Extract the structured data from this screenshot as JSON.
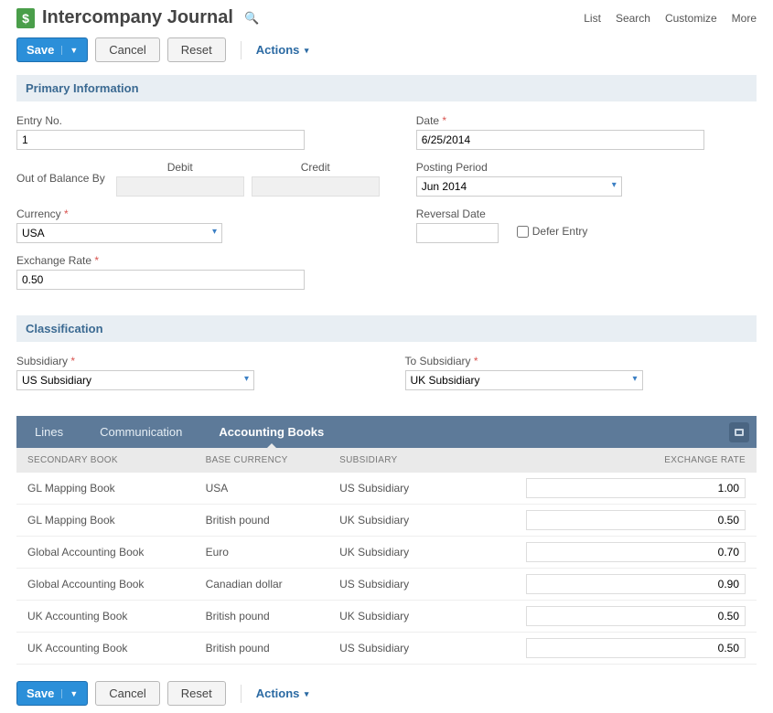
{
  "header": {
    "title": "Intercompany Journal",
    "doc_icon_glyph": "$",
    "links": [
      "List",
      "Search",
      "Customize",
      "More"
    ]
  },
  "toolbar": {
    "save_label": "Save",
    "cancel_label": "Cancel",
    "reset_label": "Reset",
    "actions_label": "Actions"
  },
  "sections": {
    "primary": "Primary Information",
    "classification": "Classification"
  },
  "fields": {
    "entry_no": {
      "label": "Entry No.",
      "value": "1"
    },
    "debit_label": "Debit",
    "credit_label": "Credit",
    "out_of_balance_label": "Out of Balance By",
    "currency": {
      "label": "Currency",
      "value": "USA"
    },
    "exchange_rate": {
      "label": "Exchange Rate",
      "value": "0.50"
    },
    "date": {
      "label": "Date",
      "value": "6/25/2014"
    },
    "posting_period": {
      "label": "Posting Period",
      "value": "Jun 2014"
    },
    "reversal_date": {
      "label": "Reversal Date",
      "value": ""
    },
    "defer_entry_label": "Defer Entry",
    "subsidiary": {
      "label": "Subsidiary",
      "value": "US Subsidiary"
    },
    "to_subsidiary": {
      "label": "To Subsidiary",
      "value": "UK Subsidiary"
    }
  },
  "tabs": {
    "lines": "Lines",
    "communication": "Communication",
    "accounting_books": "Accounting Books"
  },
  "table": {
    "columns": [
      "SECONDARY BOOK",
      "BASE CURRENCY",
      "SUBSIDIARY",
      "EXCHANGE RATE"
    ],
    "rows": [
      {
        "book": "GL Mapping Book",
        "currency": "USA",
        "subsidiary": "US Subsidiary",
        "rate": "1.00"
      },
      {
        "book": "GL Mapping Book",
        "currency": "British pound",
        "subsidiary": "UK Subsidiary",
        "rate": "0.50"
      },
      {
        "book": "Global Accounting Book",
        "currency": "Euro",
        "subsidiary": "UK Subsidiary",
        "rate": "0.70"
      },
      {
        "book": "Global Accounting Book",
        "currency": "Canadian dollar",
        "subsidiary": "US Subsidiary",
        "rate": "0.90"
      },
      {
        "book": "UK Accounting Book",
        "currency": "British pound",
        "subsidiary": "UK Subsidiary",
        "rate": "0.50"
      },
      {
        "book": "UK Accounting Book",
        "currency": "British pound",
        "subsidiary": "US Subsidiary",
        "rate": "0.50"
      }
    ]
  },
  "colors": {
    "primary_button": "#2b8fd9",
    "section_bg": "#e8eef3",
    "tab_bg": "#5d7a99"
  }
}
